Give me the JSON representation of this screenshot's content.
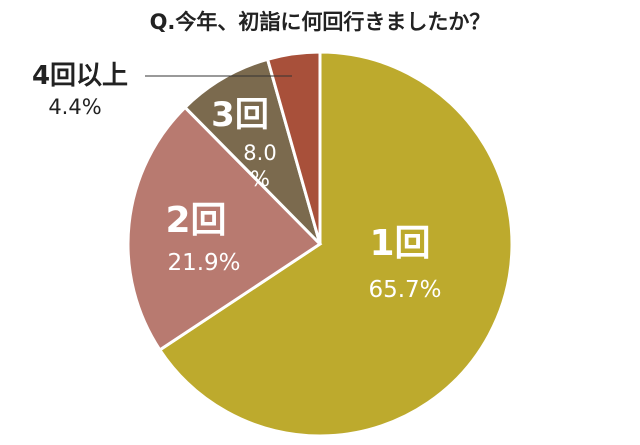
{
  "title": "Q.今年、初詣に何回行きましたか？",
  "chart_data": {
    "type": "pie",
    "title": "Q.今年、初詣に何回行きましたか？",
    "categories": [
      "1回",
      "2回",
      "3回",
      "4回以上"
    ],
    "values": [
      65.7,
      21.9,
      8.0,
      4.4
    ],
    "value_labels": [
      "65.7%",
      "21.9%",
      "8.0\n%",
      "4.4%"
    ],
    "colors": [
      "#bdaa2d",
      "#b87a70",
      "#7b6a4e",
      "#a8503a"
    ],
    "start_angle": "top",
    "direction": "clockwise",
    "legend": "none"
  }
}
